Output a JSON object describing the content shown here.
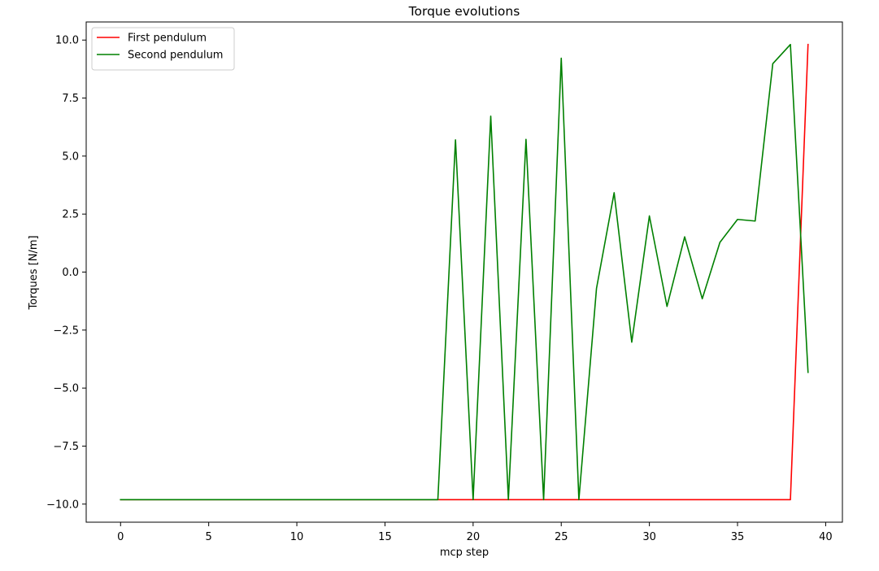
{
  "chart_data": {
    "type": "line",
    "title": "Torque evolutions",
    "xlabel": "mcp step",
    "ylabel": "Torques [N/m]",
    "xlim": [
      -1.95,
      40.95
    ],
    "ylim": [
      -10.78,
      10.78
    ],
    "xticks": [
      0,
      5,
      10,
      15,
      20,
      25,
      30,
      35,
      40
    ],
    "xtick_labels": [
      "0",
      "5",
      "10",
      "15",
      "20",
      "25",
      "30",
      "35",
      "40"
    ],
    "yticks": [
      10.0,
      7.5,
      5.0,
      2.5,
      0.0,
      -2.5,
      -5.0,
      -7.5,
      -10.0
    ],
    "ytick_labels": [
      "10.0",
      "7.5",
      "5.0",
      "2.5",
      "0.0",
      "−2.5",
      "−5.0",
      "−7.5",
      "−10.0"
    ],
    "grid": false,
    "legend_position": "top-left",
    "series": [
      {
        "name": "First pendulum",
        "color": "#ff0000",
        "x": [
          0,
          1,
          2,
          3,
          4,
          5,
          6,
          7,
          8,
          9,
          10,
          11,
          12,
          13,
          14,
          15,
          16,
          17,
          18,
          19,
          20,
          21,
          22,
          23,
          24,
          25,
          26,
          27,
          28,
          29,
          30,
          31,
          32,
          33,
          34,
          35,
          36,
          37,
          38,
          39
        ],
        "values": [
          -9.81,
          -9.81,
          -9.81,
          -9.81,
          -9.81,
          -9.81,
          -9.81,
          -9.81,
          -9.81,
          -9.81,
          -9.81,
          -9.81,
          -9.81,
          -9.81,
          -9.81,
          -9.81,
          -9.81,
          -9.81,
          -9.81,
          -9.81,
          -9.81,
          -9.81,
          -9.81,
          -9.81,
          -9.81,
          -9.81,
          -9.81,
          -9.81,
          -9.81,
          -9.81,
          -9.81,
          -9.81,
          -9.81,
          -9.81,
          -9.81,
          -9.81,
          -9.81,
          -9.81,
          -9.81,
          9.81
        ]
      },
      {
        "name": "Second pendulum",
        "color": "#008000",
        "x": [
          0,
          1,
          2,
          3,
          4,
          5,
          6,
          7,
          8,
          9,
          10,
          11,
          12,
          13,
          14,
          15,
          16,
          17,
          18,
          19,
          20,
          21,
          22,
          23,
          24,
          25,
          26,
          27,
          28,
          29,
          30,
          31,
          32,
          33,
          34,
          35,
          36,
          37,
          38,
          39
        ],
        "values": [
          -9.81,
          -9.81,
          -9.81,
          -9.81,
          -9.81,
          -9.81,
          -9.81,
          -9.81,
          -9.81,
          -9.81,
          -9.81,
          -9.81,
          -9.81,
          -9.81,
          -9.81,
          -9.81,
          -9.81,
          -9.81,
          -9.81,
          5.7,
          -9.81,
          6.72,
          -9.81,
          5.72,
          -9.81,
          9.22,
          -9.81,
          -0.7,
          3.42,
          -3.02,
          2.42,
          -1.48,
          1.52,
          -1.15,
          1.28,
          2.27,
          2.2,
          8.98,
          9.81,
          -4.32
        ]
      }
    ]
  }
}
